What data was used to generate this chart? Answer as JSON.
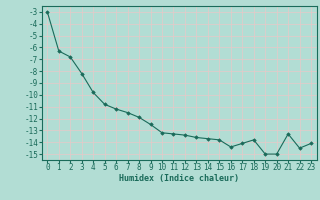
{
  "x": [
    0,
    1,
    2,
    3,
    4,
    5,
    6,
    7,
    8,
    9,
    10,
    11,
    12,
    13,
    14,
    15,
    16,
    17,
    18,
    19,
    20,
    21,
    22,
    23
  ],
  "y": [
    -3.0,
    -6.3,
    -6.8,
    -8.2,
    -9.8,
    -10.8,
    -11.2,
    -11.5,
    -11.9,
    -12.5,
    -13.2,
    -13.3,
    -13.4,
    -13.6,
    -13.7,
    -13.8,
    -14.4,
    -14.1,
    -13.8,
    -15.0,
    -15.0,
    -13.3,
    -14.5,
    -14.1
  ],
  "line_color": "#1a6b5a",
  "marker": "D",
  "marker_size": 1.8,
  "bg_color": "#b2ddd4",
  "grid_color": "#e8c8c8",
  "tick_color": "#1a6b5a",
  "xlabel": "Humidex (Indice chaleur)",
  "xlim": [
    -0.5,
    23.5
  ],
  "ylim": [
    -15.5,
    -2.5
  ],
  "yticks": [
    -3,
    -4,
    -5,
    -6,
    -7,
    -8,
    -9,
    -10,
    -11,
    -12,
    -13,
    -14,
    -15
  ],
  "xticks": [
    0,
    1,
    2,
    3,
    4,
    5,
    6,
    7,
    8,
    9,
    10,
    11,
    12,
    13,
    14,
    15,
    16,
    17,
    18,
    19,
    20,
    21,
    22,
    23
  ],
  "xlabel_fontsize": 6.0,
  "tick_fontsize": 5.5,
  "line_width": 0.8
}
